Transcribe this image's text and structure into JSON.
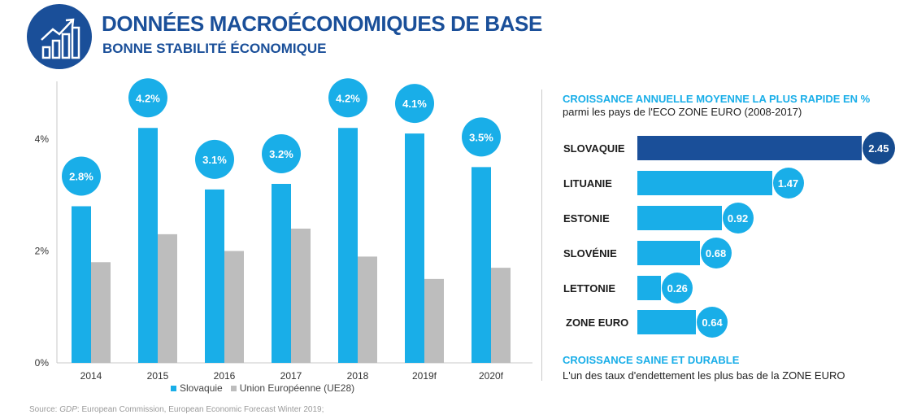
{
  "header": {
    "icon": "growth-chart-icon",
    "title": "DONNÉES MACROÉCONOMIQUES DE BASE",
    "subtitle": "BONNE STABILITÉ ÉCONOMIQUE"
  },
  "colors": {
    "navy": "#1a4f99",
    "cyan": "#19aee8",
    "grey": "#bdbdbd",
    "dark_bubble": "#164b8f"
  },
  "chart_data": [
    {
      "type": "bar",
      "categories": [
        "2014",
        "2015",
        "2016",
        "2017",
        "2018",
        "2019f",
        "2020f"
      ],
      "series": [
        {
          "name": "Slovaquie",
          "values": [
            2.8,
            4.2,
            3.1,
            3.2,
            4.2,
            4.1,
            3.5
          ],
          "color": "#19aee8"
        },
        {
          "name": "Union Européenne (UE28)",
          "values": [
            1.8,
            2.3,
            2.0,
            2.4,
            1.9,
            1.5,
            1.7
          ],
          "color": "#bdbdbd"
        }
      ],
      "data_labels": [
        "2.8%",
        "4.2%",
        "3.1%",
        "3.2%",
        "4.2%",
        "4.1%",
        "3.5%"
      ],
      "y_ticks": [
        "0%",
        "2%",
        "4%"
      ],
      "ylim": [
        0,
        4.8
      ],
      "grid": false,
      "legend": "bottom",
      "source": {
        "label": "GDP",
        "text": ": European Commission, European Economic Forecast Winter 2019;",
        "prefix": "Source: "
      }
    },
    {
      "type": "bar",
      "orientation": "horizontal",
      "title": "CROISSANCE ANNUELLE MOYENNE LA PLUS RAPIDE EN %",
      "subtitle": "parmi les pays de l'ECO ZONE EURO (2008-2017)",
      "categories": [
        "SLOVAQUIE",
        "LITUANIE",
        "ESTONIE",
        "SLOVÉNIE",
        "LETTONIE",
        "ZONE EURO"
      ],
      "values": [
        2.45,
        1.47,
        0.92,
        0.68,
        0.26,
        0.64
      ],
      "value_labels": [
        "2.45",
        "1.47",
        "0.92",
        "0.68",
        "0.26",
        "0.64"
      ],
      "highlight": "SLOVAQUIE"
    }
  ],
  "footer": {
    "title": "CROISSANCE SAINE ET DURABLE",
    "text": "L'un des taux d'endettement les plus bas de la ZONE EURO"
  }
}
